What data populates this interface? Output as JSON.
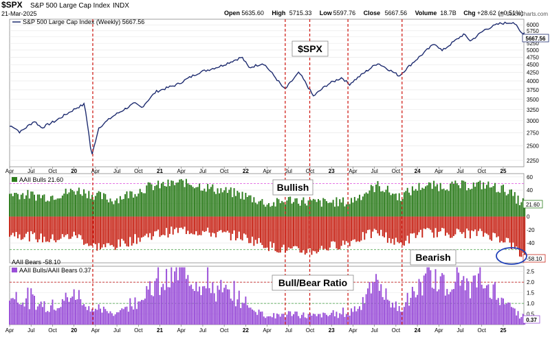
{
  "header": {
    "symbol": "$SPX",
    "name": "S&P 500 Large Cap Index",
    "exchange": "INDX",
    "date": "21-Mar-2025",
    "watermark": "@ StockCharts.com",
    "ohlc": [
      {
        "label": "Open",
        "value": "5635.60"
      },
      {
        "label": "High",
        "value": "5715.33"
      },
      {
        "label": "Low",
        "value": "5597.76"
      },
      {
        "label": "Close",
        "value": "5667.56"
      },
      {
        "label": "Volume",
        "value": "18.7B"
      },
      {
        "label": "Chg",
        "value": "+28.62 (+0.51%)"
      }
    ]
  },
  "annotations": {
    "spx": "$SPX",
    "bullish": "Bullish",
    "bearish": "Bearish",
    "ratio": "Bull/Bear Ratio"
  },
  "colors": {
    "price_line": "#1c2a6e",
    "bulls": "#2e7d1e",
    "bears": "#c8281b",
    "ratio": "#9a4fd8",
    "event_line": "#d0201a",
    "ref_magenta": "#e060e0",
    "ref_green": "#3a9a3a",
    "circle": "#1e3fb8"
  },
  "chart_data": [
    {
      "type": "line",
      "panel": "price",
      "legend": "S&P 500 Large Cap Index (Weekly) 5667.56",
      "last_value_label": "5667.56",
      "scale": "log",
      "ylim": [
        2150,
        6250
      ],
      "yticks": [
        2250,
        2500,
        2750,
        3000,
        3250,
        3500,
        3750,
        4000,
        4250,
        4500,
        4750,
        5000,
        5250,
        5500,
        5750,
        6000
      ],
      "x_range": [
        "2019-04",
        "2025-03"
      ],
      "x_tick_labels": [
        "Apr",
        "Jul",
        "Oct",
        "20",
        "Apr",
        "Jul",
        "Oct",
        "21",
        "Apr",
        "Jul",
        "Oct",
        "22",
        "Apr",
        "Jul",
        "Oct",
        "23",
        "Apr",
        "Jul",
        "Oct",
        "24",
        "Apr",
        "Jul",
        "Oct",
        "25"
      ],
      "anchors": [
        [
          "2019-04",
          2880
        ],
        [
          "2019-05",
          2760
        ],
        [
          "2019-07",
          2990
        ],
        [
          "2019-08",
          2850
        ],
        [
          "2019-10",
          3000
        ],
        [
          "2020-01",
          3300
        ],
        [
          "2020-02",
          3380
        ],
        [
          "2020-03",
          2300
        ],
        [
          "2020-04",
          2850
        ],
        [
          "2020-06",
          3100
        ],
        [
          "2020-09",
          3400
        ],
        [
          "2020-10",
          3300
        ],
        [
          "2020-12",
          3700
        ],
        [
          "2021-03",
          3900
        ],
        [
          "2021-06",
          4250
        ],
        [
          "2021-09",
          4450
        ],
        [
          "2021-12",
          4750
        ],
        [
          "2022-01",
          4400
        ],
        [
          "2022-03",
          4550
        ],
        [
          "2022-06",
          3750
        ],
        [
          "2022-08",
          4250
        ],
        [
          "2022-10",
          3580
        ],
        [
          "2022-12",
          3900
        ],
        [
          "2023-02",
          4100
        ],
        [
          "2023-03",
          3900
        ],
        [
          "2023-07",
          4550
        ],
        [
          "2023-10",
          4150
        ],
        [
          "2024-01",
          4800
        ],
        [
          "2024-03",
          5250
        ],
        [
          "2024-04",
          4970
        ],
        [
          "2024-07",
          5600
        ],
        [
          "2024-08",
          5340
        ],
        [
          "2024-10",
          5800
        ],
        [
          "2024-12",
          6050
        ],
        [
          "2025-02",
          6120
        ],
        [
          "2025-03",
          5667.56
        ]
      ]
    },
    {
      "type": "bar",
      "panel": "sentiment",
      "series": [
        {
          "name": "AAII Bulls",
          "last": 21.6,
          "last_label": "21.60"
        },
        {
          "name": "AAII Bears",
          "last": -58.1,
          "last_label": "-58.10"
        }
      ],
      "legend_bulls": "AAII Bulls 21.60",
      "legend_bears": "AAII Bears -58.10",
      "ylim": [
        -70,
        65
      ],
      "yticks": [
        -40,
        -20,
        0,
        20,
        40,
        60
      ],
      "reference_lines": [
        50,
        -50
      ],
      "bulls_anchors": [
        [
          "2019-04",
          35
        ],
        [
          "2019-09",
          30
        ],
        [
          "2020-01",
          40
        ],
        [
          "2020-03",
          34
        ],
        [
          "2020-06",
          25
        ],
        [
          "2020-11",
          45
        ],
        [
          "2021-04",
          52
        ],
        [
          "2021-08",
          42
        ],
        [
          "2021-12",
          33
        ],
        [
          "2022-04",
          18
        ],
        [
          "2022-07",
          26
        ],
        [
          "2022-10",
          21
        ],
        [
          "2023-03",
          22
        ],
        [
          "2023-07",
          47
        ],
        [
          "2023-10",
          30
        ],
        [
          "2024-01",
          46
        ],
        [
          "2024-07",
          47
        ],
        [
          "2024-10",
          48
        ],
        [
          "2025-01",
          40
        ],
        [
          "2025-03",
          21.6
        ]
      ],
      "bears_anchors": [
        [
          "2019-04",
          -25
        ],
        [
          "2019-09",
          -35
        ],
        [
          "2020-01",
          -28
        ],
        [
          "2020-03",
          -45
        ],
        [
          "2020-06",
          -45
        ],
        [
          "2020-11",
          -28
        ],
        [
          "2021-04",
          -20
        ],
        [
          "2021-08",
          -25
        ],
        [
          "2021-12",
          -30
        ],
        [
          "2022-04",
          -45
        ],
        [
          "2022-07",
          -52
        ],
        [
          "2022-10",
          -52
        ],
        [
          "2023-03",
          -38
        ],
        [
          "2023-07",
          -23
        ],
        [
          "2023-10",
          -42
        ],
        [
          "2024-01",
          -24
        ],
        [
          "2024-07",
          -25
        ],
        [
          "2024-10",
          -26
        ],
        [
          "2025-01",
          -35
        ],
        [
          "2025-03",
          -58.1
        ]
      ]
    },
    {
      "type": "bar",
      "panel": "ratio",
      "series": [
        {
          "name": "AAII Bulls/AAII Bears",
          "last": 0.37,
          "last_label": "0.37"
        }
      ],
      "legend": "AAII Bulls/AAII Bears 0.37",
      "ylim": [
        0,
        2.75
      ],
      "yticks": [
        0.5,
        1.0,
        1.5,
        2.0,
        2.5
      ],
      "reference_lines": [
        2.0,
        1.0
      ],
      "x_tick_labels": [
        "Apr",
        "Jul",
        "Oct",
        "20",
        "Apr",
        "Jul",
        "Oct",
        "21",
        "Apr",
        "Jul",
        "Oct",
        "22",
        "Apr",
        "Jul",
        "Oct",
        "23",
        "Apr",
        "Jul",
        "Oct",
        "24",
        "Apr",
        "Jul",
        "Oct",
        "25"
      ]
    },
    {
      "type": "event_lines",
      "dates": [
        "2020-03-20",
        "2022-06-17",
        "2022-09-30",
        "2023-03-10",
        "2023-10-27"
      ]
    }
  ]
}
